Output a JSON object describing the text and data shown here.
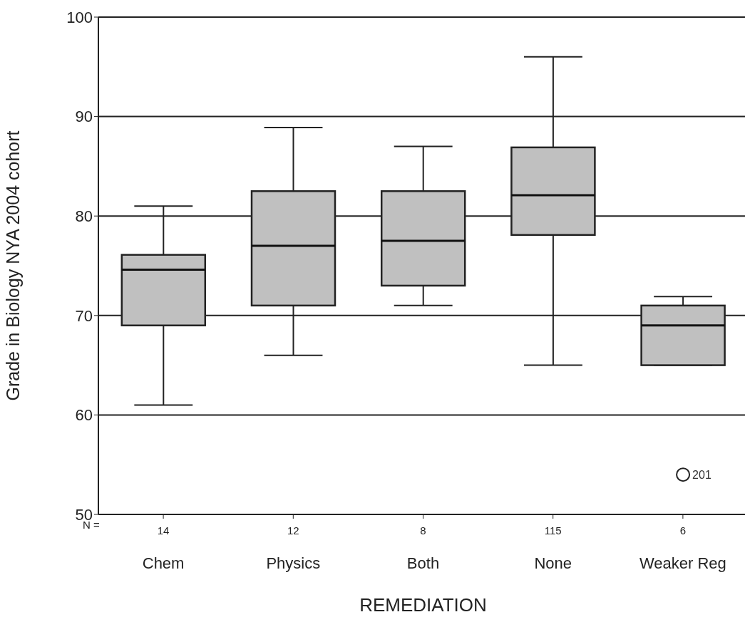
{
  "chart_data": {
    "type": "box",
    "xlabel": "REMEDIATION",
    "ylabel": "Grade in Biology NYA 2004 cohort",
    "categories": [
      "Chem",
      "Physics",
      "Both",
      "None",
      "Weaker Reg"
    ],
    "color": "#c0c0c0",
    "boxes": [
      {
        "low": 61,
        "q1": 69,
        "median": 74.6,
        "q3": 76.1,
        "high": 81
      },
      {
        "low": 66,
        "q1": 71,
        "median": 77,
        "q3": 82.5,
        "high": 88.9
      },
      {
        "low": 71,
        "q1": 73,
        "median": 77.5,
        "q3": 82.5,
        "high": 87
      },
      {
        "low": 65,
        "q1": 78.1,
        "median": 82.1,
        "q3": 86.9,
        "high": 96
      },
      {
        "low": 65,
        "q1": 65,
        "median": 69,
        "q3": 71,
        "high": 71.9,
        "outliers": [
          54
        ]
      }
    ],
    "ylim": [
      50,
      100
    ],
    "yticks": [
      50,
      60,
      70,
      80,
      90,
      100
    ],
    "grid": "y",
    "marker": "circle",
    "annotations": [
      "N =",
      "14",
      "12",
      "8",
      "115",
      "6",
      "201"
    ]
  }
}
